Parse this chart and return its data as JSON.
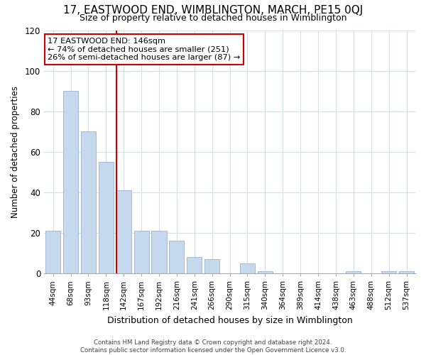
{
  "title": "17, EASTWOOD END, WIMBLINGTON, MARCH, PE15 0QJ",
  "subtitle": "Size of property relative to detached houses in Wimblington",
  "xlabel": "Distribution of detached houses by size in Wimblington",
  "ylabel": "Number of detached properties",
  "bar_labels": [
    "44sqm",
    "68sqm",
    "93sqm",
    "118sqm",
    "142sqm",
    "167sqm",
    "192sqm",
    "216sqm",
    "241sqm",
    "266sqm",
    "290sqm",
    "315sqm",
    "340sqm",
    "364sqm",
    "389sqm",
    "414sqm",
    "438sqm",
    "463sqm",
    "488sqm",
    "512sqm",
    "537sqm"
  ],
  "bar_values": [
    21,
    90,
    70,
    55,
    41,
    21,
    21,
    16,
    8,
    7,
    0,
    5,
    1,
    0,
    0,
    0,
    0,
    1,
    0,
    1,
    1
  ],
  "bar_color": "#c5d8ed",
  "bar_edge_color": "#a0bcd8",
  "vline_index": 4,
  "vline_color": "#cc0000",
  "ylim": [
    0,
    120
  ],
  "annotation_line1": "17 EASTWOOD END: 146sqm",
  "annotation_line2": "← 74% of detached houses are smaller (251)",
  "annotation_line3": "26% of semi-detached houses are larger (87) →",
  "footer_text": "Contains HM Land Registry data © Crown copyright and database right 2024.\nContains public sector information licensed under the Open Government Licence v3.0.",
  "background_color": "#ffffff",
  "grid_color": "#d5dfe8"
}
